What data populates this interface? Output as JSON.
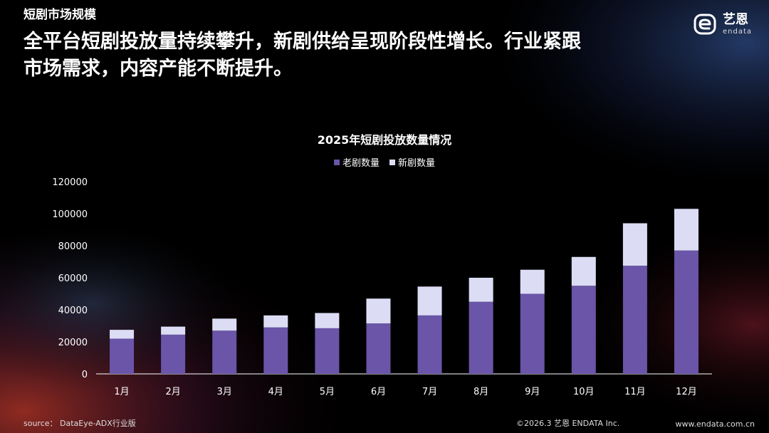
{
  "header": {
    "section_label": "短剧市场规模",
    "headline_line1": "全平台短剧投放量持续攀升，新剧供给呈现阶段性增长。行业紧跟",
    "headline_line2": "市场需求，内容产能不断提升。"
  },
  "brand": {
    "name_cn": "艺恩",
    "name_en": "endata"
  },
  "footer": {
    "source": "source： DataEye-ADX行业版",
    "copyright": "©2026.3  艺恩 ENDATA Inc.",
    "url": "www.endata.com.cn"
  },
  "colors": {
    "old": "#6A55A8",
    "new": "#DCDDF5",
    "axis": "#FFFFFF"
  },
  "chart_data": {
    "type": "bar",
    "stacked": true,
    "title": "2025年短剧投放数量情况",
    "categories": [
      "1月",
      "2月",
      "3月",
      "4月",
      "5月",
      "6月",
      "7月",
      "8月",
      "9月",
      "10月",
      "11月",
      "12月"
    ],
    "series": [
      {
        "name": "老剧数量",
        "values": [
          22000,
          24500,
          27000,
          29000,
          28500,
          31500,
          36500,
          45000,
          50000,
          55000,
          67500,
          77000
        ]
      },
      {
        "name": "新剧数量",
        "values": [
          5500,
          5000,
          7500,
          7500,
          9500,
          15500,
          18000,
          15000,
          15000,
          18000,
          26500,
          26000
        ]
      }
    ],
    "ylim": [
      0,
      120000
    ],
    "yticks": [
      0,
      20000,
      40000,
      60000,
      80000,
      100000,
      120000
    ],
    "xlabel": "",
    "ylabel": "",
    "legend_position": "top-center",
    "grid": false
  }
}
